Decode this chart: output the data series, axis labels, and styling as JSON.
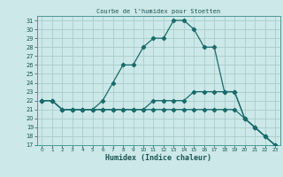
{
  "title": "Courbe de l'humidex pour Stoetten",
  "xlabel": "Humidex (Indice chaleur)",
  "bg_color": "#cce8e8",
  "grid_color": "#aacccc",
  "line_color": "#1a6b6b",
  "marker": "D",
  "marker_size": 2.2,
  "xlim": [
    -0.5,
    23.5
  ],
  "ylim": [
    17,
    31.5
  ],
  "xticks": [
    0,
    1,
    2,
    3,
    4,
    5,
    6,
    7,
    8,
    9,
    10,
    11,
    12,
    13,
    14,
    15,
    16,
    17,
    18,
    19,
    20,
    21,
    22,
    23
  ],
  "yticks": [
    17,
    18,
    19,
    20,
    21,
    22,
    23,
    24,
    25,
    26,
    27,
    28,
    29,
    30,
    31
  ],
  "lines": [
    {
      "x": [
        0,
        1,
        2,
        3,
        4,
        5,
        6,
        7,
        8,
        9,
        10,
        11,
        12,
        13,
        14,
        15,
        16,
        17,
        18,
        19,
        20,
        21,
        22,
        23
      ],
      "y": [
        22,
        22,
        21,
        21,
        21,
        21,
        22,
        24,
        26,
        26,
        28,
        29,
        29,
        31,
        31,
        30,
        28,
        28,
        23,
        23,
        20,
        19,
        18,
        17
      ]
    },
    {
      "x": [
        0,
        1,
        2,
        3,
        4,
        5,
        6,
        7,
        8,
        9,
        10,
        11,
        12,
        13,
        14,
        15,
        16,
        17,
        18,
        19,
        20,
        21,
        22,
        23
      ],
      "y": [
        22,
        22,
        21,
        21,
        21,
        21,
        21,
        21,
        21,
        21,
        21,
        22,
        22,
        22,
        22,
        23,
        23,
        23,
        23,
        23,
        20,
        19,
        18,
        17
      ]
    },
    {
      "x": [
        0,
        1,
        2,
        3,
        4,
        5,
        6,
        7,
        8,
        9,
        10,
        11,
        12,
        13,
        14,
        15,
        16,
        17,
        18,
        19,
        20,
        21,
        22,
        23
      ],
      "y": [
        22,
        22,
        21,
        21,
        21,
        21,
        21,
        21,
        21,
        21,
        21,
        21,
        21,
        21,
        21,
        21,
        21,
        21,
        21,
        21,
        20,
        19,
        18,
        17
      ]
    }
  ]
}
